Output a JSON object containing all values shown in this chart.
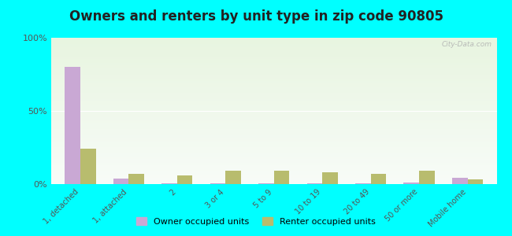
{
  "title": "Owners and renters by unit type in zip code 90805",
  "categories": [
    "1, detached",
    "1, attached",
    "2",
    "3 or 4",
    "5 to 9",
    "10 to 19",
    "20 to 49",
    "50 or more",
    "Mobile home"
  ],
  "owner_values": [
    80,
    4,
    0.5,
    0.5,
    0.5,
    0.5,
    0.5,
    1.0,
    4.5
  ],
  "renter_values": [
    24,
    7,
    6,
    9,
    9,
    8,
    7,
    9,
    3
  ],
  "owner_color": "#c9a8d4",
  "renter_color": "#b8bc6e",
  "bg_color": "#00ffff",
  "gradient_top": "#e8f5e0",
  "gradient_bottom": "#f8fcf4",
  "yticks": [
    0,
    50,
    100
  ],
  "ylim": [
    0,
    100
  ],
  "title_fontsize": 12,
  "watermark": "City-Data.com"
}
